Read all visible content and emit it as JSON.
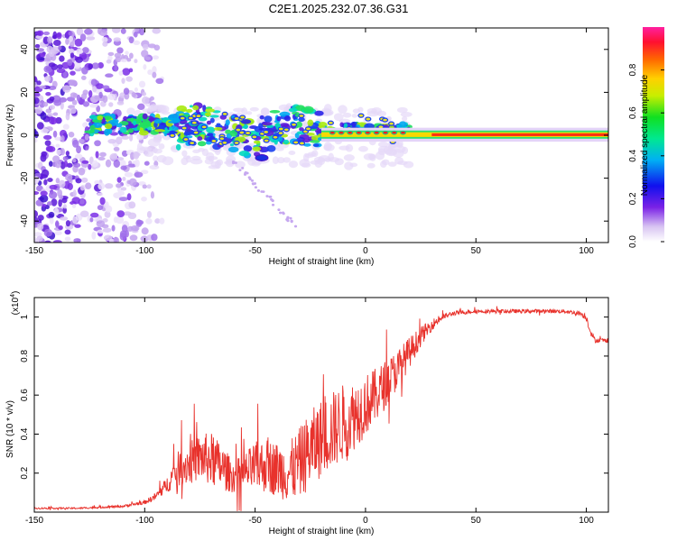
{
  "title": "C2E1.2025.232.07.36.G31",
  "chart_data": [
    {
      "type": "heatmap",
      "xlabel": "Height of straight line (km)",
      "ylabel": "Frequency (Hz)",
      "xlim": [
        -150,
        110
      ],
      "ylim": [
        -50,
        50
      ],
      "xticks": [
        -150,
        -100,
        -50,
        0,
        50,
        100
      ],
      "yticks": [
        -40,
        -20,
        0,
        20,
        40
      ],
      "colorbar": {
        "label": "Normalized spectral amplitude",
        "range": [
          0,
          1
        ],
        "ticks": [
          0.0,
          0.2,
          0.4,
          0.6,
          0.8
        ]
      }
    },
    {
      "type": "line",
      "xlabel": "Height of straight line (km)",
      "ylabel": "SNR (10 * v/v)",
      "y_scale_label": "(x10",
      "y_scale_exponent": "4",
      "xlim": [
        -150,
        110
      ],
      "ylim": [
        0,
        1.1
      ],
      "xticks": [
        -150,
        -100,
        -50,
        0,
        50,
        100
      ],
      "yticks": [
        0.2,
        0.4,
        0.6,
        0.8,
        1.0
      ],
      "series": [
        {
          "name": "SNR",
          "color": "#e8322c",
          "x": [
            -150,
            -130,
            -110,
            -100,
            -95,
            -90,
            -85,
            -80,
            -75,
            -70,
            -65,
            -60,
            -55,
            -50,
            -45,
            -40,
            -35,
            -30,
            -25,
            -20,
            -15,
            -10,
            -5,
            0,
            5,
            10,
            15,
            20,
            25,
            30,
            35,
            40,
            50,
            60,
            70,
            80,
            90,
            97,
            100,
            102,
            104,
            106,
            110
          ],
          "values": [
            0.02,
            0.02,
            0.03,
            0.05,
            0.08,
            0.14,
            0.22,
            0.25,
            0.28,
            0.27,
            0.23,
            0.18,
            0.2,
            0.23,
            0.24,
            0.22,
            0.2,
            0.25,
            0.32,
            0.38,
            0.42,
            0.46,
            0.5,
            0.55,
            0.6,
            0.67,
            0.74,
            0.82,
            0.9,
            0.96,
            1.0,
            1.02,
            1.03,
            1.03,
            1.03,
            1.03,
            1.03,
            1.02,
            1.0,
            0.92,
            0.88,
            0.88,
            0.88
          ],
          "noise": [
            0.004,
            0.004,
            0.006,
            0.01,
            0.02,
            0.04,
            0.09,
            0.11,
            0.12,
            0.14,
            0.12,
            0.08,
            0.1,
            0.13,
            0.14,
            0.14,
            0.15,
            0.18,
            0.2,
            0.2,
            0.2,
            0.2,
            0.18,
            0.16,
            0.14,
            0.12,
            0.1,
            0.08,
            0.05,
            0.03,
            0.015,
            0.012,
            0.01,
            0.01,
            0.01,
            0.01,
            0.01,
            0.01,
            0.02,
            0.015,
            0.012,
            0.012,
            0.012
          ]
        }
      ]
    }
  ]
}
